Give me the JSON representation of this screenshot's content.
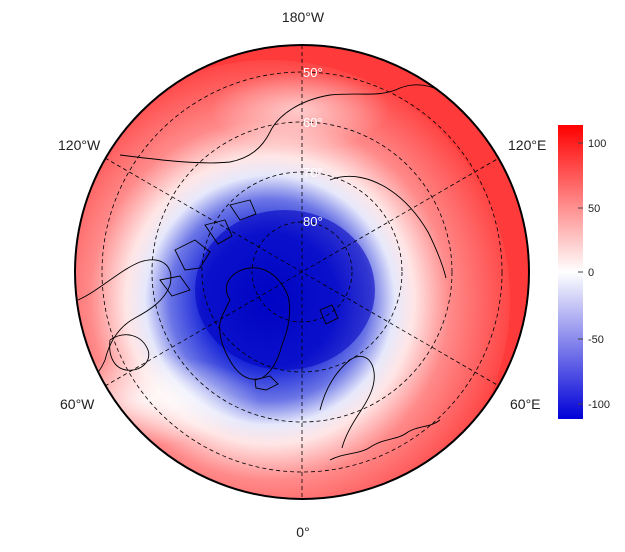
{
  "map": {
    "projection": "north-polar-stereographic",
    "field": "diverging-anomaly",
    "colors": {
      "negative": "#0000d8",
      "neutral": "#ffffff",
      "positive": "#ff0000",
      "coastline": "#000000",
      "graticule": "#000000",
      "boundary": "#000000"
    },
    "longitude_labels": {
      "top": "180°W",
      "upper_left": "120°W",
      "upper_right": "120°E",
      "lower_left": "60°W",
      "lower_right": "60°E",
      "bottom": "0°"
    },
    "latitude_labels": [
      "50°",
      "60°",
      "70°",
      "80°"
    ]
  },
  "colorbar": {
    "min": -112,
    "max": 112,
    "ticks": [
      "100",
      "50",
      "0",
      "-50",
      "-100"
    ]
  }
}
